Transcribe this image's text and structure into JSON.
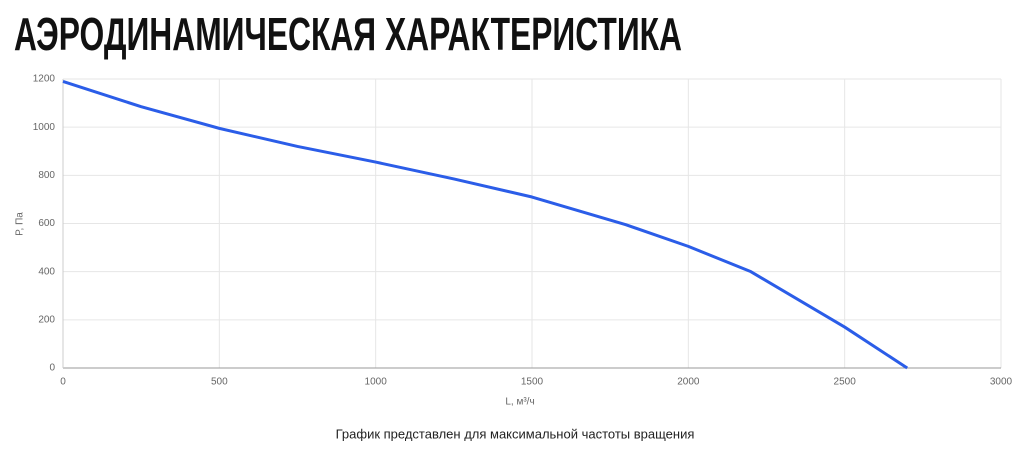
{
  "chart_data": {
    "type": "line",
    "title": "АЭРОДИНАМИЧЕСКАЯ ХАРАКТЕРИСТИКА",
    "xlabel": "L, м³/ч",
    "ylabel": "P, Па",
    "note": "График представлен для максимальной частоты вращения",
    "x": [
      0,
      250,
      500,
      750,
      1000,
      1250,
      1500,
      1800,
      2000,
      2200,
      2500,
      2700
    ],
    "values": [
      1190,
      1085,
      995,
      920,
      855,
      785,
      710,
      595,
      505,
      400,
      170,
      0
    ],
    "color": "#2b5de8",
    "xlim": [
      0,
      3000
    ],
    "xticks": [
      0,
      500,
      1000,
      1500,
      2000,
      2500,
      3000
    ],
    "ylim": [
      0,
      1200
    ],
    "yticks": [
      0,
      200,
      400,
      600,
      800,
      1000,
      1200
    ],
    "grid": true
  }
}
